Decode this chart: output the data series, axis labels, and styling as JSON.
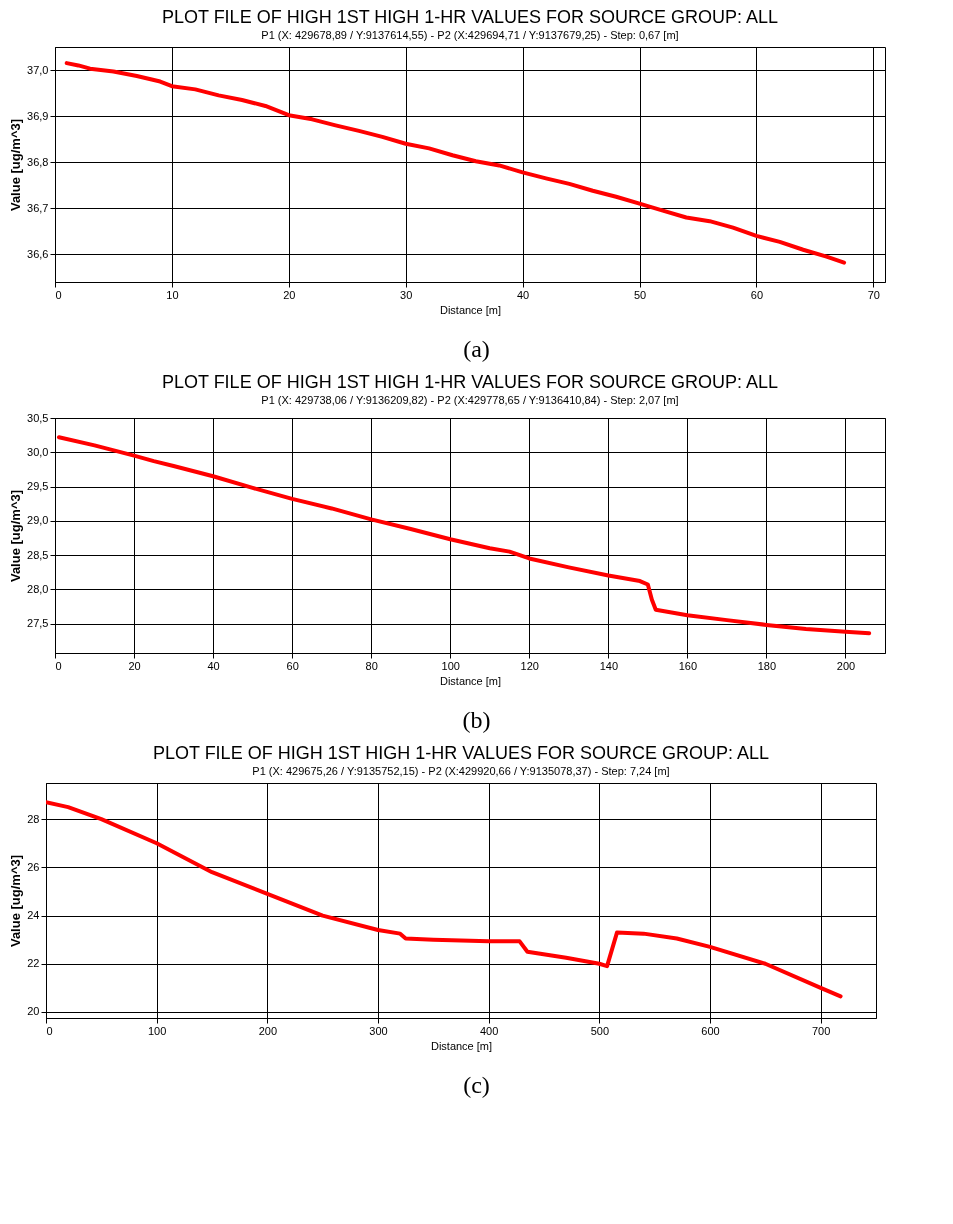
{
  "chart_data": [
    {
      "type": "line",
      "title": "PLOT FILE OF HIGH 1ST HIGH 1-HR VALUES FOR SOURCE GROUP: ALL",
      "subtitle": "P1 (X: 429678,89 / Y:9137614,55) - P2 (X:429694,71 / Y:9137679,25) - Step: 0,67 [m]",
      "xlabel": "Distance [m]",
      "ylabel": "Value [ug/m^3]",
      "annotations": [
        "(a)"
      ],
      "grid": true,
      "xlim": [
        0,
        71
      ],
      "xticks": [
        0,
        10,
        20,
        30,
        40,
        50,
        60,
        70
      ],
      "ylim": [
        36.54,
        37.05
      ],
      "yticks": [
        {
          "value": 36.6,
          "label": "36,6"
        },
        {
          "value": 36.7,
          "label": "36,7"
        },
        {
          "value": 36.8,
          "label": "36,8"
        },
        {
          "value": 36.9,
          "label": "36,9"
        },
        {
          "value": 37.0,
          "label": "37,0"
        }
      ],
      "series": [
        {
          "color": "#ff0000",
          "x": [
            1,
            2,
            3,
            5,
            7,
            9,
            10,
            12,
            14,
            16,
            18,
            20,
            22,
            24,
            26,
            28,
            30,
            32,
            34,
            36,
            38,
            40,
            42,
            44,
            46,
            48,
            50,
            52,
            54,
            56,
            58,
            60,
            62,
            64,
            66,
            67.5
          ],
          "values": [
            37.015,
            37.01,
            37.003,
            36.997,
            36.987,
            36.975,
            36.965,
            36.958,
            36.945,
            36.935,
            36.922,
            36.902,
            36.893,
            36.88,
            36.868,
            36.855,
            36.84,
            36.83,
            36.815,
            36.802,
            36.793,
            36.778,
            36.765,
            36.753,
            36.738,
            36.725,
            36.71,
            36.695,
            36.68,
            36.672,
            36.658,
            36.64,
            36.627,
            36.61,
            36.595,
            36.582
          ]
        }
      ]
    },
    {
      "type": "line",
      "title": "PLOT FILE OF HIGH 1ST HIGH 1-HR VALUES FOR SOURCE GROUP: ALL",
      "subtitle": "P1 (X: 429738,06 / Y:9136209,82) - P2 (X:429778,65 / Y:9136410,84) - Step: 2,07 [m]",
      "xlabel": "Distance [m]",
      "ylabel": "Value [ug/m^3]",
      "annotations": [
        "(b)"
      ],
      "grid": true,
      "xlim": [
        0,
        210
      ],
      "xticks": [
        0,
        20,
        40,
        60,
        80,
        100,
        120,
        140,
        160,
        180,
        200
      ],
      "ylim": [
        27.07,
        30.5
      ],
      "yticks": [
        {
          "value": 27.5,
          "label": "27,5"
        },
        {
          "value": 28.0,
          "label": "28,0"
        },
        {
          "value": 28.5,
          "label": "28,5"
        },
        {
          "value": 29.0,
          "label": "29,0"
        },
        {
          "value": 29.5,
          "label": "29,5"
        },
        {
          "value": 30.0,
          "label": "30,0"
        },
        {
          "value": 30.5,
          "label": "30,5"
        }
      ],
      "series": [
        {
          "color": "#ff0000",
          "x": [
            1,
            10,
            20,
            25,
            30,
            40,
            50,
            60,
            70,
            80,
            90,
            100,
            110,
            115,
            120,
            130,
            140,
            148,
            150,
            151,
            152,
            160,
            170,
            180,
            190,
            200,
            206
          ],
          "values": [
            30.22,
            30.1,
            29.95,
            29.87,
            29.8,
            29.65,
            29.48,
            29.32,
            29.18,
            29.02,
            28.88,
            28.73,
            28.6,
            28.55,
            28.45,
            28.32,
            28.2,
            28.12,
            28.07,
            27.85,
            27.7,
            27.62,
            27.55,
            27.48,
            27.42,
            27.38,
            27.36
          ]
        }
      ]
    },
    {
      "type": "line",
      "title": "PLOT FILE OF HIGH 1ST HIGH 1-HR VALUES FOR SOURCE GROUP: ALL",
      "subtitle": "P1 (X: 429675,26 / Y:9135752,15) - P2 (X:429920,66 / Y:9135078,37) - Step: 7,24 [m]",
      "xlabel": "Distance [m]",
      "ylabel": "Value [ug/m^3]",
      "annotations": [
        "(c)"
      ],
      "grid": true,
      "xlim": [
        0,
        750
      ],
      "xticks": [
        0,
        100,
        200,
        300,
        400,
        500,
        600,
        700
      ],
      "ylim": [
        19.75,
        29.5
      ],
      "yticks": [
        20,
        22,
        24,
        26,
        28
      ],
      "series": [
        {
          "color": "#ff0000",
          "x": [
            0,
            20,
            50,
            100,
            150,
            200,
            250,
            300,
            320,
            325,
            350,
            400,
            428,
            435,
            470,
            500,
            507,
            516,
            540,
            570,
            600,
            650,
            700,
            718
          ],
          "values": [
            28.7,
            28.5,
            28.0,
            27.0,
            25.8,
            24.9,
            24.0,
            23.4,
            23.25,
            23.05,
            23.0,
            22.93,
            22.93,
            22.5,
            22.25,
            22.0,
            21.9,
            23.3,
            23.25,
            23.05,
            22.7,
            22.0,
            21.0,
            20.65
          ]
        }
      ]
    }
  ]
}
